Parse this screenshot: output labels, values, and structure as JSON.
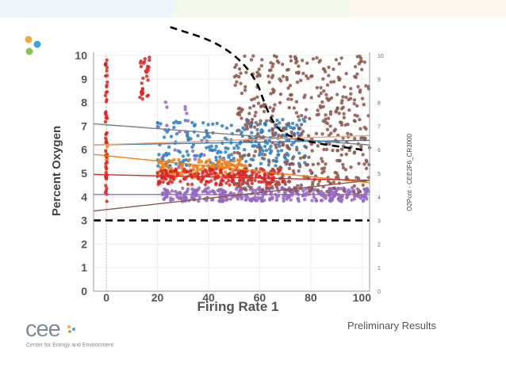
{
  "slide": {
    "note": "Preliminary Results",
    "logo_word": "cee",
    "logo_tagline": "Center for Energy and Environment",
    "decor_colors": [
      "#f2a93b",
      "#3aa3dc",
      "#8cc152"
    ],
    "band_colors": [
      "#dceef8",
      "#e9f4d8",
      "#fbf0dc"
    ]
  },
  "chart_data": {
    "type": "scatter",
    "xlabel": "Firing Rate 1",
    "ylabel": "Percent Oxygen",
    "right_label": "O2Pcnt - CEE2F6_CR3000",
    "xlim": [
      -5,
      103
    ],
    "ylim": [
      0,
      10
    ],
    "x_ticks": [
      0,
      20,
      40,
      60,
      80,
      100
    ],
    "y_ticks": [
      0,
      1,
      2,
      3,
      4,
      5,
      6,
      7,
      8,
      9,
      10
    ],
    "grid": true,
    "legend": "none",
    "series": [
      {
        "color": "#2f7fbf",
        "clusters": [
          {
            "x": [
              20,
              78
            ],
            "y": [
              5.3,
              7.3
            ],
            "n": 260
          }
        ]
      },
      {
        "color": "#ef7f1a",
        "clusters": [
          {
            "x": [
              20,
              55
            ],
            "y": [
              4.8,
              5.6
            ],
            "n": 160
          },
          {
            "x": [
              0,
              0
            ],
            "y": [
              4.8,
              6.8
            ],
            "n": 10
          }
        ]
      },
      {
        "color": "#d62728",
        "clusters": [
          {
            "x": [
              20,
              70
            ],
            "y": [
              4.5,
              5.2
            ],
            "n": 210
          },
          {
            "x": [
              0,
              0
            ],
            "y": [
              3.8,
              9.8
            ],
            "n": 50
          },
          {
            "x": [
              13,
              17
            ],
            "y": [
              8.0,
              10.0
            ],
            "n": 30
          }
        ]
      },
      {
        "color": "#9467bd",
        "clusters": [
          {
            "x": [
              22,
              103
            ],
            "y": [
              3.8,
              4.4
            ],
            "n": 340
          },
          {
            "x": [
              20,
              40
            ],
            "y": [
              5.0,
              8.5
            ],
            "n": 18
          }
        ]
      },
      {
        "color": "#8c564b",
        "clusters": [
          {
            "x": [
              50,
              103
            ],
            "y": [
              4.2,
              10.0
            ],
            "n": 460
          }
        ]
      }
    ],
    "trend_lines": [
      {
        "color": "#7f7f7f",
        "x": [
          -5,
          103
        ],
        "y": [
          7.1,
          6.2
        ]
      },
      {
        "color": "#2f7fbf",
        "x": [
          -5,
          103
        ],
        "y": [
          6.2,
          6.4
        ]
      },
      {
        "color": "#ef7f1a",
        "x": [
          -5,
          103
        ],
        "y": [
          5.8,
          4.6
        ]
      },
      {
        "color": "#d62728",
        "x": [
          -5,
          103
        ],
        "y": [
          4.95,
          4.7
        ]
      },
      {
        "color": "#9467bd",
        "x": [
          -5,
          103
        ],
        "y": [
          4.1,
          4.1
        ]
      },
      {
        "color": "#8c564b",
        "x": [
          -5,
          103
        ],
        "y": [
          3.4,
          4.7
        ]
      },
      {
        "color": "#e8a27a",
        "x": [
          -5,
          103
        ],
        "y": [
          6.2,
          6.6
        ]
      }
    ],
    "reference_lines": [
      {
        "style": "dashed",
        "color": "#000000",
        "x": [
          -5,
          103
        ],
        "y": [
          3.0,
          3.0
        ]
      },
      {
        "style": "dashed",
        "color": "#000000",
        "x": [
          25,
          45,
          58,
          63,
          68,
          80,
          100
        ],
        "y": [
          11.2,
          10.5,
          9.2,
          7.6,
          6.7,
          6.3,
          6.0
        ]
      }
    ]
  }
}
